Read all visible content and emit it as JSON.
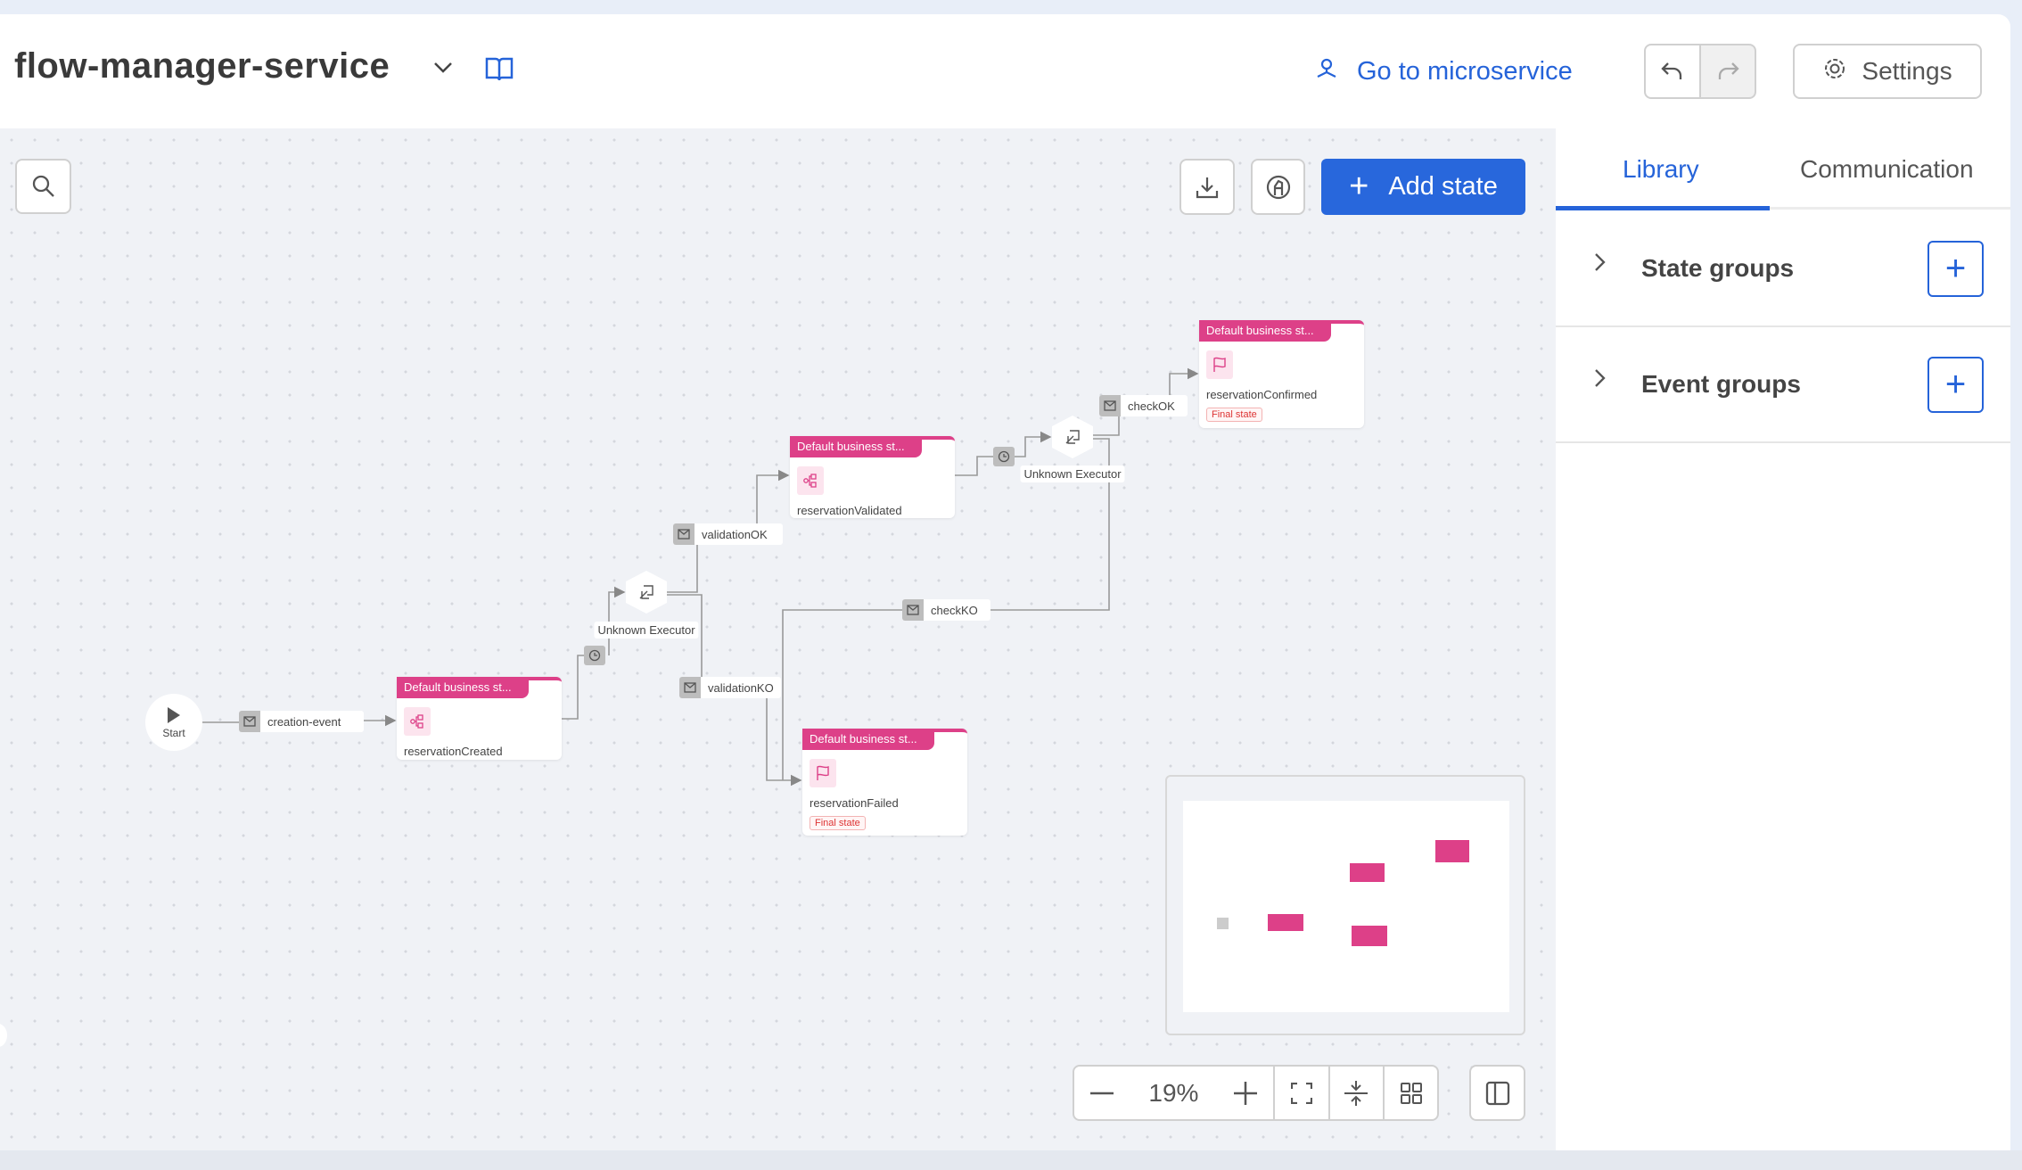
{
  "header": {
    "title": "flow-manager-service",
    "go_to_microservice": "Go to microservice",
    "settings": "Settings"
  },
  "toolbar": {
    "add_state": "Add state"
  },
  "panel": {
    "tabs": [
      {
        "label": "Library",
        "active": true
      },
      {
        "label": "Communication",
        "active": false
      }
    ],
    "groups": [
      {
        "label": "State groups"
      },
      {
        "label": "Event groups"
      }
    ]
  },
  "flow": {
    "start": "Start",
    "states": [
      {
        "category": "Default business st...",
        "name": "reservationCreated",
        "icon": "flow-icon",
        "final": ""
      },
      {
        "category": "Default business st...",
        "name": "reservationValidated",
        "icon": "flow-icon",
        "final": ""
      },
      {
        "category": "Default business st...",
        "name": "reservationConfirmed",
        "icon": "flag-icon",
        "final": "Final state"
      },
      {
        "category": "Default business st...",
        "name": "reservationFailed",
        "icon": "flag-icon",
        "final": "Final state"
      }
    ],
    "events": [
      "creation-event",
      "validationOK",
      "validationKO",
      "checkOK",
      "checkKO"
    ],
    "executors": [
      "Unknown Executor",
      "Unknown Executor"
    ]
  },
  "zoom": {
    "level": "19%"
  },
  "colors": {
    "accent": "#2563d9",
    "state": "#dd4088",
    "canvas": "#f0f2f6"
  }
}
